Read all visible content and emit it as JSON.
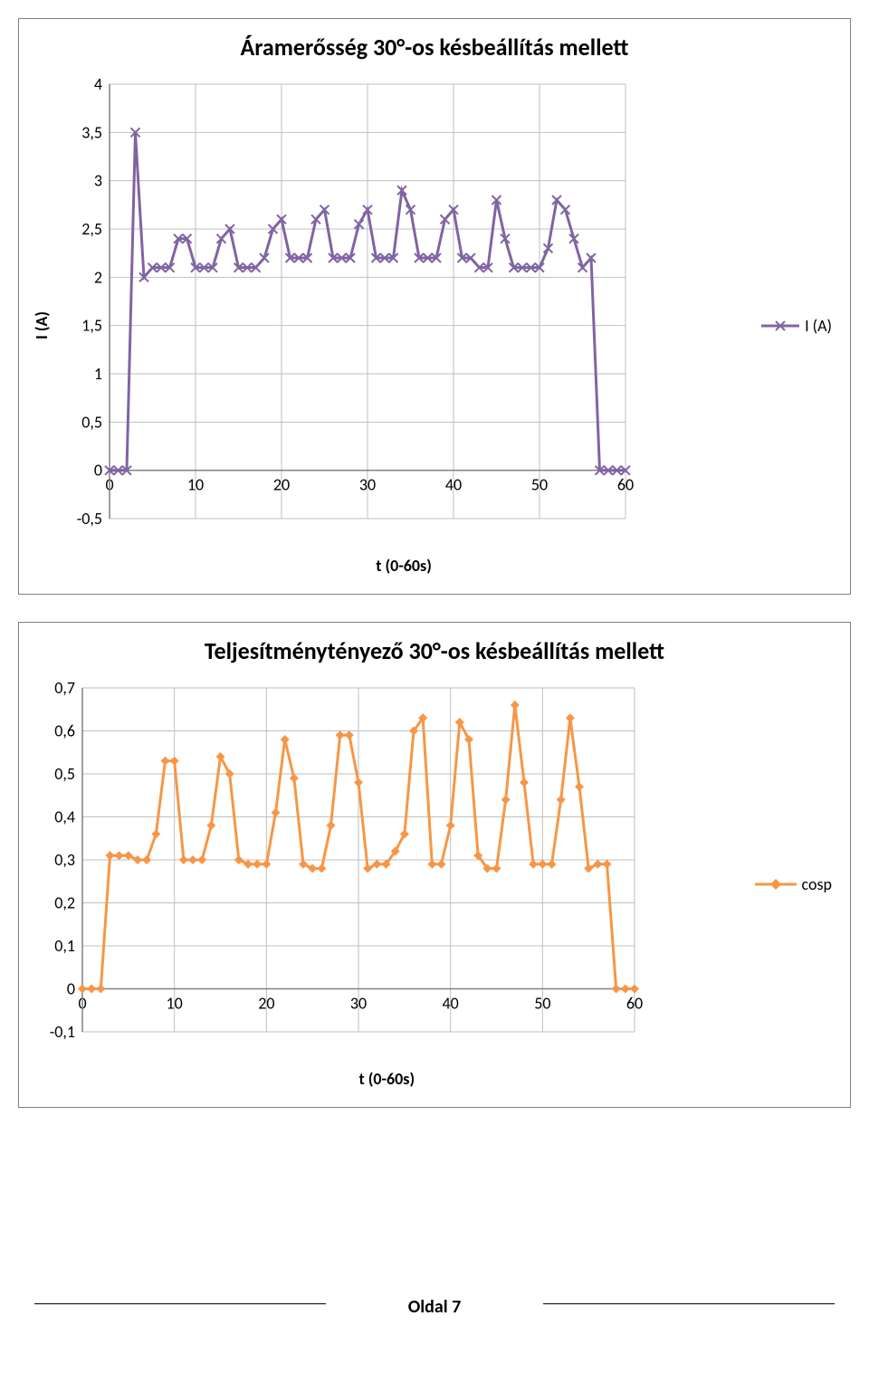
{
  "page_footer": "Oldal 7",
  "chart1": {
    "type": "line",
    "title": "Áramerősség 30°-os késbeállítás mellett",
    "title_fontsize": 26,
    "ylabel": "I (A)",
    "xlabel": "t (0-60s)",
    "legend_label": "I (A)",
    "xlim": [
      0,
      60
    ],
    "ylim": [
      -0.5,
      4
    ],
    "xtick_step": 10,
    "ytick_step": 0.5,
    "xticks": [
      "0",
      "10",
      "20",
      "30",
      "40",
      "50",
      "60"
    ],
    "yticks": [
      "-0,5",
      "0",
      "0,5",
      "1",
      "1,5",
      "2",
      "2,5",
      "3",
      "3,5",
      "4"
    ],
    "line_color": "#8064a2",
    "line_width": 3,
    "marker": "x",
    "marker_color": "#8064a2",
    "grid_color": "#bfbfbf",
    "tick_fontsize": 18,
    "background_color": "#ffffff",
    "x": [
      0,
      1,
      2,
      3,
      4,
      5,
      6,
      7,
      8,
      9,
      10,
      11,
      12,
      13,
      14,
      15,
      16,
      17,
      18,
      19,
      20,
      21,
      22,
      23,
      24,
      25,
      26,
      27,
      28,
      29,
      30,
      31,
      32,
      33,
      34,
      35,
      36,
      37,
      38,
      39,
      40,
      41,
      42,
      43,
      44,
      45,
      46,
      47,
      48,
      49,
      50,
      51,
      52,
      53,
      54,
      55,
      56,
      57,
      58,
      59,
      60
    ],
    "y": [
      0,
      0,
      0,
      3.5,
      2.0,
      2.1,
      2.1,
      2.1,
      2.4,
      2.4,
      2.1,
      2.1,
      2.1,
      2.4,
      2.5,
      2.1,
      2.1,
      2.1,
      2.2,
      2.5,
      2.6,
      2.2,
      2.2,
      2.2,
      2.6,
      2.7,
      2.2,
      2.2,
      2.2,
      2.55,
      2.7,
      2.2,
      2.2,
      2.2,
      2.9,
      2.7,
      2.2,
      2.2,
      2.2,
      2.6,
      2.7,
      2.2,
      2.2,
      2.1,
      2.1,
      2.8,
      2.4,
      2.1,
      2.1,
      2.1,
      2.1,
      2.3,
      2.8,
      2.7,
      2.4,
      2.1,
      2.2,
      0,
      0,
      0,
      0
    ]
  },
  "chart2": {
    "type": "line",
    "title": "Teljesítménytényező 30°-os késbeállítás mellett",
    "title_fontsize": 26,
    "xlabel": "t (0-60s)",
    "legend_label": "cosp",
    "xlim": [
      0,
      60
    ],
    "ylim": [
      -0.1,
      0.7
    ],
    "xtick_step": 10,
    "ytick_step": 0.1,
    "xticks": [
      "0",
      "10",
      "20",
      "30",
      "40",
      "50",
      "60"
    ],
    "yticks": [
      "-0,1",
      "0",
      "0,1",
      "0,2",
      "0,3",
      "0,4",
      "0,5",
      "0,6",
      "0,7"
    ],
    "line_color": "#f79646",
    "line_width": 3,
    "marker": "diamond",
    "marker_color": "#f79646",
    "grid_color": "#bfbfbf",
    "tick_fontsize": 18,
    "background_color": "#ffffff",
    "x": [
      0,
      1,
      2,
      3,
      4,
      5,
      6,
      7,
      8,
      9,
      10,
      11,
      12,
      13,
      14,
      15,
      16,
      17,
      18,
      19,
      20,
      21,
      22,
      23,
      24,
      25,
      26,
      27,
      28,
      29,
      30,
      31,
      32,
      33,
      34,
      35,
      36,
      37,
      38,
      39,
      40,
      41,
      42,
      43,
      44,
      45,
      46,
      47,
      48,
      49,
      50,
      51,
      52,
      53,
      54,
      55,
      56,
      57,
      58,
      59,
      60
    ],
    "y": [
      0,
      0,
      0,
      0.31,
      0.31,
      0.31,
      0.3,
      0.3,
      0.36,
      0.53,
      0.53,
      0.3,
      0.3,
      0.3,
      0.38,
      0.54,
      0.5,
      0.3,
      0.29,
      0.29,
      0.29,
      0.41,
      0.58,
      0.49,
      0.29,
      0.28,
      0.28,
      0.38,
      0.59,
      0.59,
      0.48,
      0.28,
      0.29,
      0.29,
      0.32,
      0.36,
      0.6,
      0.63,
      0.29,
      0.29,
      0.38,
      0.62,
      0.58,
      0.31,
      0.28,
      0.28,
      0.44,
      0.66,
      0.48,
      0.29,
      0.29,
      0.29,
      0.44,
      0.63,
      0.47,
      0.28,
      0.29,
      0.29,
      0,
      0,
      0
    ]
  }
}
